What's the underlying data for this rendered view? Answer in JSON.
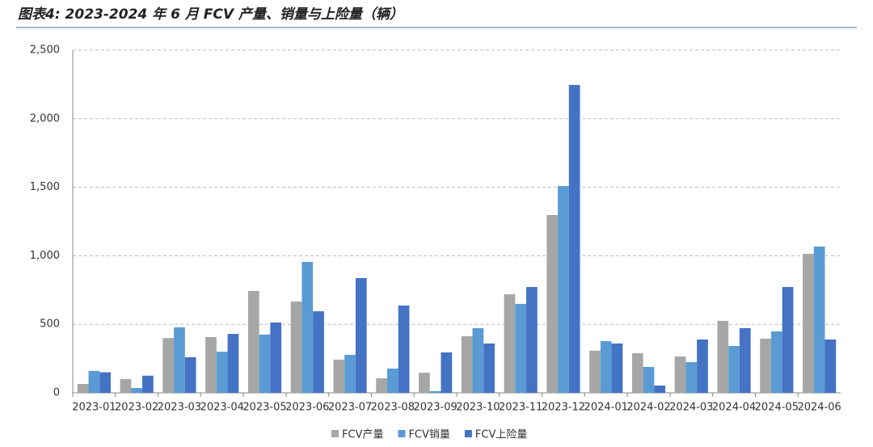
{
  "chart_data": {
    "type": "bar",
    "title": "图表4: 2023-2024 年 6 月 FCV 产量、销量与上险量（辆）",
    "categories": [
      "2023-01",
      "2023-02",
      "2023-03",
      "2023-04",
      "2023-05",
      "2023-06",
      "2023-07",
      "2023-08",
      "2023-09",
      "2023-10",
      "2023-11",
      "2023-12",
      "2024-01",
      "2024-02",
      "2024-03",
      "2024-04",
      "2024-05",
      "2024-06"
    ],
    "series": [
      {
        "name": "FCV产量",
        "color": "#a6a6a6",
        "values": [
          65,
          100,
          400,
          407,
          743,
          666,
          242,
          106,
          147,
          413,
          719,
          1297,
          307,
          289,
          265,
          525,
          395,
          1014
        ]
      },
      {
        "name": "FCV销量",
        "color": "#5b9bd5",
        "values": [
          160,
          35,
          478,
          300,
          425,
          955,
          277,
          177,
          12,
          472,
          649,
          1509,
          377,
          189,
          224,
          342,
          448,
          1067
        ]
      },
      {
        "name": "FCV上险量",
        "color": "#4472c4",
        "values": [
          150,
          125,
          260,
          430,
          513,
          595,
          837,
          637,
          295,
          360,
          772,
          2246,
          360,
          53,
          389,
          472,
          772,
          389
        ]
      }
    ],
    "ylim": [
      0,
      2500
    ],
    "yticks": [
      0,
      500,
      {
        "value": 1000,
        "label": "1,000"
      },
      {
        "value": 1500,
        "label": "1,500"
      },
      {
        "value": 2000,
        "label": "2,000"
      },
      {
        "value": 2500,
        "label": "2,500"
      }
    ],
    "grid": true,
    "legend": "bottom"
  }
}
